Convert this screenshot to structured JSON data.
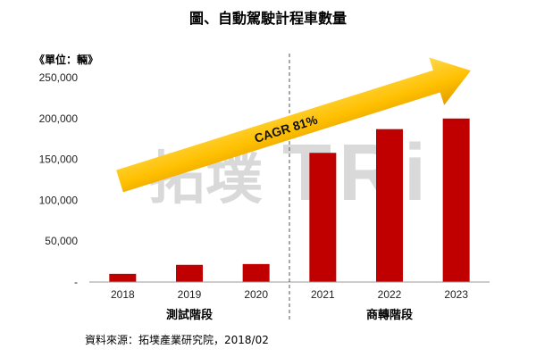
{
  "colors": {
    "bar": "#C00000",
    "arrow_light": "#FFD84A",
    "arrow": "#FFC000",
    "arrow_dark": "#E39E00",
    "axis": "#9A9A9A",
    "divider": "#555555",
    "watermark": "#9E9E9E"
  },
  "watermark": {
    "brand_cn": "拓墣",
    "brand_en": "TRi"
  },
  "source": "資料來源：拓墣產業研究院，2018/02",
  "chart_data": {
    "type": "bar",
    "title": "圖、自動駕駛計程車數量",
    "unit_label": "《單位：輛》",
    "categories": [
      "2018",
      "2019",
      "2020",
      "2021",
      "2022",
      "2023"
    ],
    "values": [
      10000,
      21000,
      22000,
      158000,
      187000,
      200000
    ],
    "ylim": [
      0,
      250000
    ],
    "yticks": [
      0,
      50000,
      100000,
      150000,
      200000,
      250000
    ],
    "ytick_labels": [
      "-",
      "50,000",
      "100,000",
      "150,000",
      "200,000",
      "250,000"
    ],
    "grid": false,
    "phases": [
      {
        "label": "測試階段",
        "from": 0,
        "to": 2
      },
      {
        "label": "商轉階段",
        "from": 3,
        "to": 5
      }
    ],
    "annotation": "CAGR 81%"
  }
}
